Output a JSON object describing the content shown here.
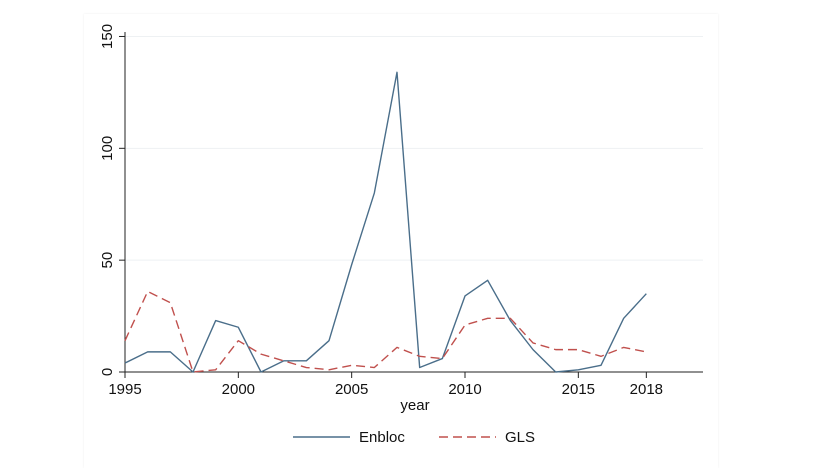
{
  "chart_data": {
    "type": "line",
    "title": "",
    "xlabel": "year",
    "ylabel": "",
    "x": [
      1995,
      1996,
      1997,
      1998,
      1999,
      2000,
      2001,
      2002,
      2003,
      2004,
      2005,
      2006,
      2007,
      2008,
      2009,
      2010,
      2011,
      2012,
      2013,
      2014,
      2015,
      2016,
      2017,
      2018
    ],
    "series": [
      {
        "name": "Enbloc",
        "color": "#4a6e8a",
        "dash": "solid",
        "values": [
          4,
          9,
          9,
          0,
          23,
          20,
          0,
          5,
          5,
          14,
          48,
          80,
          134,
          2,
          6,
          34,
          41,
          23,
          10,
          0,
          1,
          3,
          24,
          35
        ]
      },
      {
        "name": "GLS",
        "color": "#c0504d",
        "dash": "dashed",
        "values": [
          14,
          36,
          31,
          0,
          1,
          14,
          8,
          5,
          2,
          1,
          3,
          2,
          11,
          7,
          6,
          21,
          24,
          24,
          13,
          10,
          10,
          7,
          11,
          9
        ]
      }
    ],
    "xlim": [
      1995,
      2020.5
    ],
    "ylim": [
      0,
      152
    ],
    "xticks": [
      1995,
      2000,
      2005,
      2010,
      2015,
      2018
    ],
    "yticks": [
      0,
      50,
      100,
      150
    ],
    "grid": "horizontal",
    "legend_position": "bottom"
  }
}
